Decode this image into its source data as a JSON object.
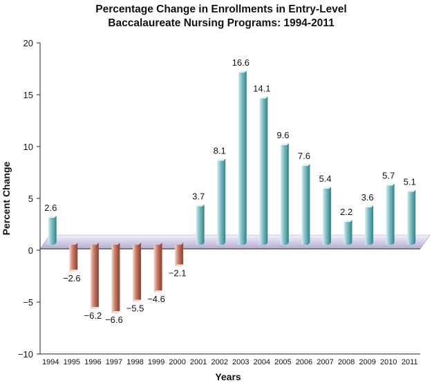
{
  "chart_data": {
    "type": "bar",
    "title_lines": [
      "Percentage Change in Enrollments in Entry-Level",
      "Baccalaureate Nursing Programs: 1994-2011"
    ],
    "xlabel": "Years",
    "ylabel": "Percent Change",
    "ylim": [
      -10,
      20
    ],
    "yticks": [
      20,
      15,
      10,
      5,
      0,
      -5,
      -10
    ],
    "ytick_labels": [
      "20",
      "15",
      "10",
      "5",
      "0",
      "−5",
      "−10"
    ],
    "categories": [
      "1994",
      "1995",
      "1996",
      "1997",
      "1998",
      "1999",
      "2000",
      "2001",
      "2002",
      "2003",
      "2004",
      "2005",
      "2006",
      "2007",
      "2008",
      "2009",
      "2010",
      "2011"
    ],
    "values": [
      2.6,
      -2.6,
      -6.2,
      -6.6,
      -5.5,
      -4.6,
      -2.1,
      3.7,
      8.1,
      16.6,
      14.1,
      9.6,
      7.6,
      5.4,
      2.2,
      3.6,
      5.7,
      5.1
    ],
    "value_labels": [
      "2.6",
      "−2.6",
      "−6.2",
      "−6.6",
      "−5.5",
      "−4.6",
      "−2.1",
      "3.7",
      "8.1",
      "16.6",
      "14.1",
      "9.6",
      "7.6",
      "5.4",
      "2.2",
      "3.6",
      "5.7",
      "5.1"
    ],
    "colors": {
      "positive_light": "#c6e5e7",
      "positive_mid": "#6fb3b8",
      "positive_dark": "#3f8f96",
      "positive_top": "#e4f3f4",
      "negative_light": "#f2cbbf",
      "negative_mid": "#c7705a",
      "negative_dark": "#9b4a37",
      "negative_top": "#f6ddd5",
      "floor_light": "#f0ecf8",
      "floor_dark": "#b7acd2"
    }
  }
}
